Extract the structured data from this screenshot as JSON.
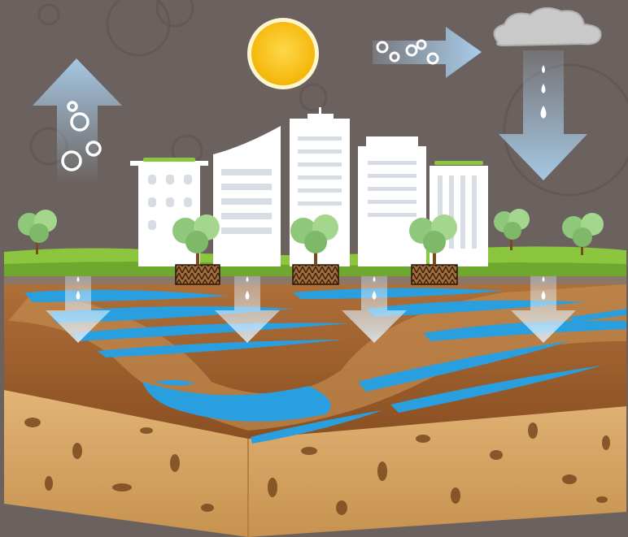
{
  "colors": {
    "background": "#6b625f",
    "sky_arrow": "#a9cdea",
    "sun": "#f6c21a",
    "sun_ring": "#fff6cf",
    "cloud": "#c8c8c8",
    "grass": "#8cc63f",
    "soil": "#9b5b2a",
    "soil_light": "#b57a43",
    "water": "#2a9fe0",
    "sponge": "#d9a868",
    "sponge_hole": "#7a4a1f",
    "building": "#ffffff",
    "tree": "#8fc87a"
  },
  "icons": {
    "sun": "sun-icon",
    "cloud": "cloud-icon",
    "evaporation": "evaporation-arrow-icon",
    "wind": "wind-arrow-icon",
    "rain": "rain-arrow-icon",
    "infiltration": "infiltration-arrow-icon",
    "tree": "tree-icon",
    "building": "building-icon",
    "planter": "planter-box-icon"
  }
}
